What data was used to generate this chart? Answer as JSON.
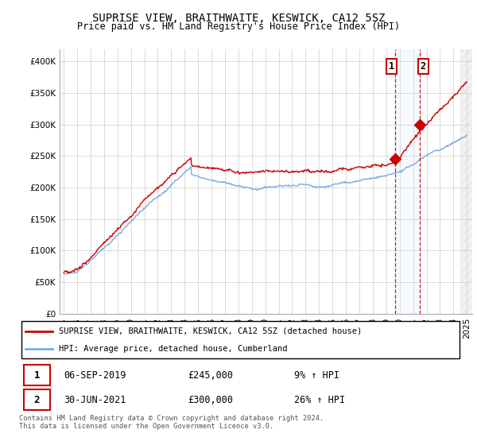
{
  "title": "SUPRISE VIEW, BRAITHWAITE, KESWICK, CA12 5SZ",
  "subtitle": "Price paid vs. HM Land Registry's House Price Index (HPI)",
  "legend_line1": "SUPRISE VIEW, BRAITHWAITE, KESWICK, CA12 5SZ (detached house)",
  "legend_line2": "HPI: Average price, detached house, Cumberland",
  "transaction1_date": "06-SEP-2019",
  "transaction1_price": "£245,000",
  "transaction1_hpi": "9% ↑ HPI",
  "transaction2_date": "30-JUN-2021",
  "transaction2_price": "£300,000",
  "transaction2_hpi": "26% ↑ HPI",
  "footer": "Contains HM Land Registry data © Crown copyright and database right 2024.\nThis data is licensed under the Open Government Licence v3.0.",
  "ylim": [
    0,
    420000
  ],
  "yticks": [
    0,
    50000,
    100000,
    150000,
    200000,
    250000,
    300000,
    350000,
    400000
  ],
  "red_color": "#cc0000",
  "blue_color": "#7aacdc",
  "shade_color": "#ddeeff",
  "marker1_x": 2019.67,
  "marker1_y": 245000,
  "marker2_x": 2021.5,
  "marker2_y": 300000,
  "vline1_x": 2019.67,
  "vline2_x": 2021.5,
  "xmin": 1995,
  "xmax": 2025
}
